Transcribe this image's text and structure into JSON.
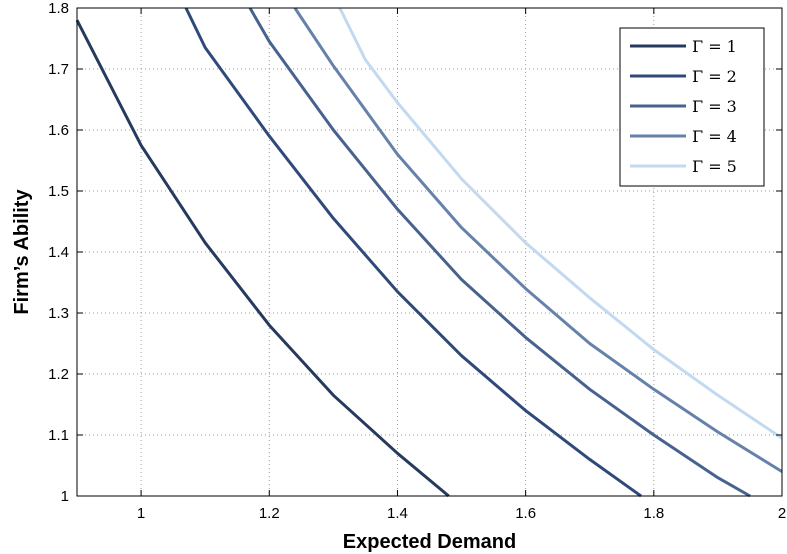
{
  "chart_data": {
    "type": "line",
    "title": "",
    "xlabel": "Expected Demand",
    "ylabel": "Firm’s Ability",
    "xlim": [
      0.9,
      2.0
    ],
    "ylim": [
      1.0,
      1.8
    ],
    "x_ticks": [
      1,
      1.2,
      1.4,
      1.6,
      1.8,
      2
    ],
    "x_tick_labels": [
      "1",
      "1.2",
      "1.4",
      "1.6",
      "1.8",
      "2"
    ],
    "y_ticks": [
      1,
      1.1,
      1.2,
      1.3,
      1.4,
      1.5,
      1.6,
      1.7,
      1.8
    ],
    "y_tick_labels": [
      "1",
      "1.1",
      "1.2",
      "1.3",
      "1.4",
      "1.5",
      "1.6",
      "1.7",
      "1.8"
    ],
    "grid": true,
    "legend_position": "top-right",
    "series": [
      {
        "name": "Γ = 1",
        "color": "#263a5e",
        "x": [
          0.9,
          1.0,
          1.1,
          1.2,
          1.3,
          1.4,
          1.48
        ],
        "y": [
          1.78,
          1.575,
          1.415,
          1.28,
          1.165,
          1.07,
          1.0
        ]
      },
      {
        "name": "Γ = 2",
        "color": "#2f4a7a",
        "x": [
          1.07,
          1.1,
          1.2,
          1.3,
          1.4,
          1.5,
          1.6,
          1.7,
          1.78
        ],
        "y": [
          1.8,
          1.735,
          1.59,
          1.455,
          1.335,
          1.23,
          1.14,
          1.06,
          1.0
        ]
      },
      {
        "name": "Γ = 3",
        "color": "#48628f",
        "x": [
          1.17,
          1.2,
          1.3,
          1.4,
          1.5,
          1.6,
          1.7,
          1.8,
          1.9,
          1.95
        ],
        "y": [
          1.8,
          1.745,
          1.6,
          1.47,
          1.355,
          1.26,
          1.175,
          1.1,
          1.03,
          1.0
        ]
      },
      {
        "name": "Γ = 4",
        "color": "#6681aa",
        "x": [
          1.24,
          1.3,
          1.4,
          1.5,
          1.6,
          1.7,
          1.8,
          1.9,
          2.0
        ],
        "y": [
          1.8,
          1.705,
          1.56,
          1.44,
          1.34,
          1.25,
          1.175,
          1.105,
          1.04
        ]
      },
      {
        "name": "Γ = 5",
        "color": "#c3d9f0",
        "x": [
          1.31,
          1.35,
          1.4,
          1.5,
          1.6,
          1.7,
          1.8,
          1.9,
          2.0
        ],
        "y": [
          1.8,
          1.715,
          1.645,
          1.52,
          1.415,
          1.325,
          1.24,
          1.165,
          1.095
        ]
      }
    ]
  }
}
